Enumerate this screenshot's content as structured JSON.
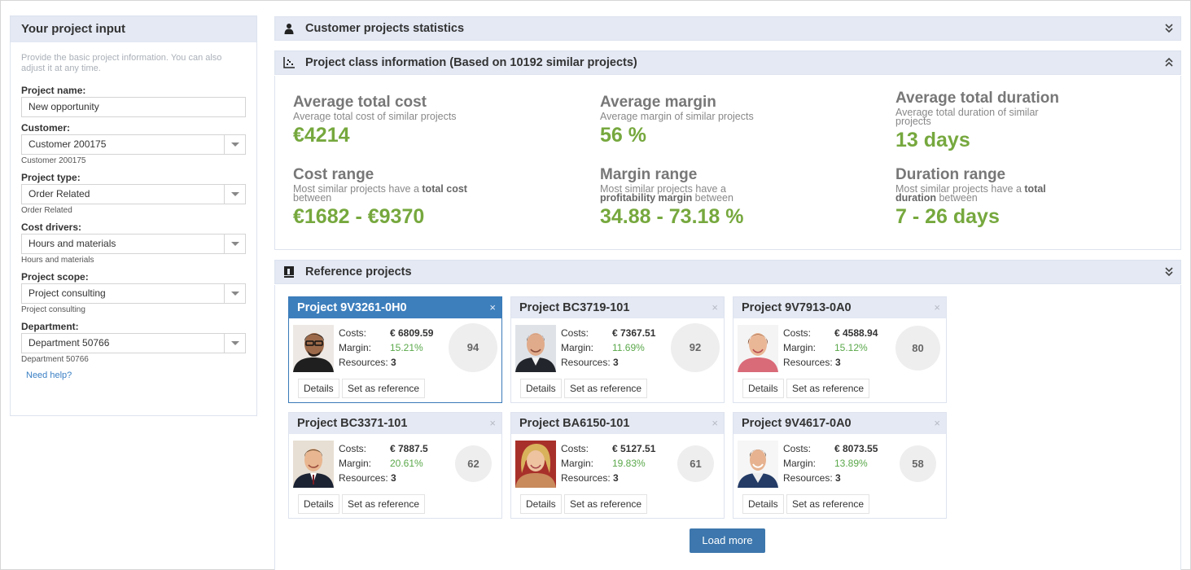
{
  "left_panel": {
    "title": "Your project input",
    "description": "Provide the basic project information. You can also adjust it at any time.",
    "fields": {
      "project_name": {
        "label": "Project name:",
        "value": "New opportunity"
      },
      "customer": {
        "label": "Customer:",
        "value": "Customer 200175",
        "sub": "Customer 200175"
      },
      "project_type": {
        "label": "Project type:",
        "value": "Order Related",
        "sub": "Order Related"
      },
      "cost_drivers": {
        "label": "Cost drivers:",
        "value": "Hours and materials",
        "sub": "Hours and materials"
      },
      "project_scope": {
        "label": "Project scope:",
        "value": "Project consulting",
        "sub": "Project consulting"
      },
      "department": {
        "label": "Department:",
        "value": "Department 50766",
        "sub": "Department 50766"
      }
    },
    "help_link": "Need help?"
  },
  "sections": {
    "customer_stats": {
      "title": "Customer projects statistics",
      "icon": "person-icon"
    },
    "class_info": {
      "title": "Project class information (Based on 10192 similar projects)",
      "icon": "scatter-chart-icon"
    },
    "reference": {
      "title": "Reference projects",
      "icon": "book-icon"
    }
  },
  "stats": {
    "avg_cost": {
      "title": "Average total cost",
      "desc": "Average total cost of similar projects",
      "value": "€4214"
    },
    "avg_margin": {
      "title": "Average margin",
      "desc": "Average margin of similar projects",
      "value": "56 %"
    },
    "avg_duration": {
      "title": "Average total duration",
      "desc": "Average total duration of similar projects",
      "value": "13 days"
    },
    "cost_range": {
      "title": "Cost range",
      "desc_pre": "Most similar projects have a ",
      "desc_bold": "total cost",
      "desc_post": " between",
      "value": "€1682 - €9370"
    },
    "margin_range": {
      "title": "Margin range",
      "desc_pre": "Most similar projects have a ",
      "desc_bold": "profitability margin",
      "desc_post": " between",
      "value": "34.88 - 73.18 %"
    },
    "duration_range": {
      "title": "Duration range",
      "desc_pre": "Most similar projects have a ",
      "desc_bold": "total duration",
      "desc_post": " between",
      "value": "7 - 26 days"
    }
  },
  "card_labels": {
    "costs": "Costs:",
    "margin": "Margin:",
    "resources": "Resources:",
    "details": "Details",
    "set_reference": "Set as reference",
    "close": "×"
  },
  "projects": [
    {
      "name": "Project 9V3261-0H0",
      "costs": "€ 6809.59",
      "margin": "15.21%",
      "resources": "3",
      "score": "94",
      "selected": true
    },
    {
      "name": "Project BC3719-101",
      "costs": "€ 7367.51",
      "margin": "11.69%",
      "resources": "3",
      "score": "92",
      "selected": false
    },
    {
      "name": "Project 9V7913-0A0",
      "costs": "€ 4588.94",
      "margin": "15.12%",
      "resources": "3",
      "score": "80",
      "selected": false
    },
    {
      "name": "Project BC3371-101",
      "costs": "€ 7887.5",
      "margin": "20.61%",
      "resources": "3",
      "score": "62",
      "selected": false
    },
    {
      "name": "Project BA6150-101",
      "costs": "€ 5127.51",
      "margin": "19.83%",
      "resources": "3",
      "score": "61",
      "selected": false
    },
    {
      "name": "Project 9V4617-0A0",
      "costs": "€ 8073.55",
      "margin": "13.89%",
      "resources": "3",
      "score": "58",
      "selected": false
    }
  ],
  "load_more": "Load more",
  "colors": {
    "accent_blue": "#3d7fbd",
    "value_green": "#76a83e",
    "header_bg": "#e4e9f4"
  }
}
